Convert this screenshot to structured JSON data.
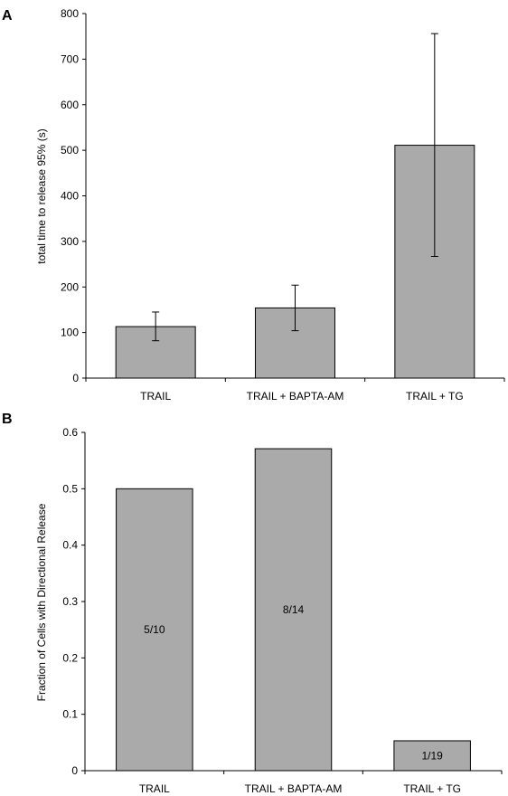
{
  "colors": {
    "bar_fill": "#aaaaaa",
    "bar_stroke": "#000000",
    "axis": "#000000"
  },
  "chart_data": [
    {
      "panel": "A",
      "type": "bar",
      "title": "",
      "xlabel": "",
      "ylabel": "total time to release 95% (s)",
      "categories": [
        "TRAIL",
        "TRAIL + BAPTA-AM",
        "TRAIL + TG"
      ],
      "values": [
        113,
        154,
        511
      ],
      "error_low": [
        82,
        104,
        267
      ],
      "error_high": [
        145,
        204,
        756
      ],
      "ylim": [
        0,
        800
      ],
      "yticks": [
        0,
        100,
        200,
        300,
        400,
        500,
        600,
        700,
        800
      ],
      "ytick_labels": [
        "0",
        "100",
        "200",
        "300",
        "400",
        "500",
        "600",
        "700",
        "800"
      ],
      "grid": false
    },
    {
      "panel": "B",
      "type": "bar",
      "title": "",
      "xlabel": "",
      "ylabel": "Fraction of Cells with Directional Release",
      "categories": [
        "TRAIL",
        "TRAIL + BAPTA-AM",
        "TRAIL + TG"
      ],
      "values": [
        0.5,
        0.571,
        0.053
      ],
      "bar_labels": [
        "5/10",
        "8/14",
        "1/19"
      ],
      "ylim": [
        0,
        0.6
      ],
      "yticks": [
        0,
        0.1,
        0.2,
        0.3,
        0.4,
        0.5,
        0.6
      ],
      "ytick_labels": [
        "0",
        "0.1",
        "0.2",
        "0.3",
        "0.4",
        "0.5",
        "0.6"
      ],
      "grid": false
    }
  ]
}
